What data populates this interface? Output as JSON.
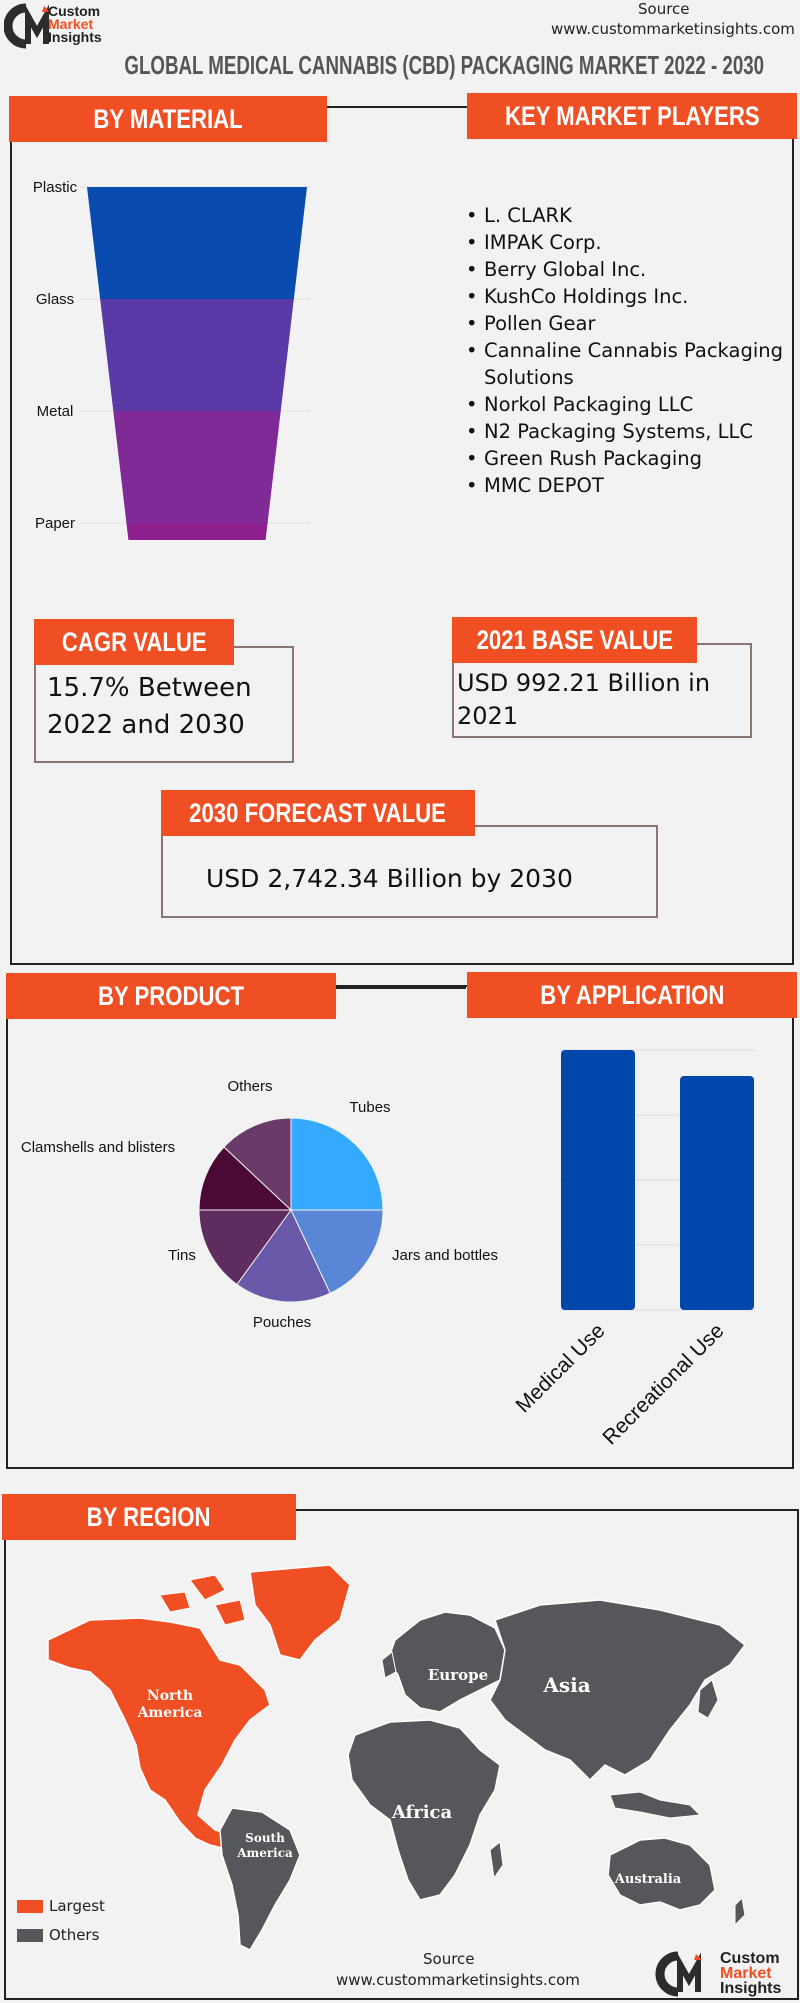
{
  "header": {
    "logo_line1": "Custom",
    "logo_line2": "Market",
    "logo_line3": "Insights",
    "source_label": "Source",
    "source_url": "www.custommarketinsights.com",
    "title": "GLOBAL MEDICAL CANNABIS (CBD) PACKAGING MARKET 2022 - 2030"
  },
  "sections": {
    "material": "BY MATERIAL",
    "players": "KEY MARKET PLAYERS",
    "cagr": "CAGR VALUE",
    "base": "2021 BASE VALUE",
    "forecast": "2030 FORECAST  VALUE",
    "product": "BY PRODUCT",
    "application": "BY APPLICATION",
    "region": "BY REGION"
  },
  "key_players": [
    "L. CLARK",
    "IMPAK Corp.",
    "Berry Global Inc.",
    "KushCo Holdings Inc.",
    "Pollen Gear",
    "Cannaline Cannabis Packaging Solutions",
    "Norkol Packaging LLC",
    "N2 Packaging Systems, LLC",
    "Green Rush Packaging",
    "MMC DEPOT"
  ],
  "stats": {
    "cagr_line1": "15.7% Between",
    "cagr_line2": "2022 and 2030",
    "base_line1": "USD 992.21 Billion in",
    "base_line2": "2021",
    "forecast": "USD 2,742.34 Billion by 2030"
  },
  "region": {
    "labels": [
      "North America",
      "Europe",
      "Asia",
      "Africa",
      "South America",
      "Australia"
    ],
    "largest": "North America",
    "legend_largest": "Largest",
    "legend_others": "Others",
    "color_largest": "#f04e23",
    "color_others": "#55575b"
  },
  "footer": {
    "source_label": "Source",
    "source_url": "www.custommarketinsights.com",
    "logo_line1": "Custom",
    "logo_line2": "Market",
    "logo_line3": "Insights"
  },
  "chart_data": [
    {
      "type": "funnel",
      "title": "BY MATERIAL",
      "categories": [
        "Plastic",
        "Glass",
        "Metal",
        "Paper"
      ],
      "colors": [
        "#0a4bb0",
        "#5a3aa6",
        "#7f2a96",
        "#8f2090"
      ]
    },
    {
      "type": "pie",
      "title": "BY PRODUCT",
      "categories": [
        "Tubes",
        "Jars and bottles",
        "Pouches",
        "Tins",
        "Clamshells and blisters",
        "Others"
      ],
      "values": [
        25,
        18,
        17,
        15,
        12,
        13
      ],
      "colors": [
        "#33aaff",
        "#5a86d8",
        "#6a58a8",
        "#5e2c5e",
        "#4a0a35",
        "#6a3a6a"
      ]
    },
    {
      "type": "bar",
      "title": "BY APPLICATION",
      "categories": [
        "Medical Use",
        "Recreational Use"
      ],
      "values": [
        100,
        90
      ],
      "color": "#0047ab"
    }
  ]
}
